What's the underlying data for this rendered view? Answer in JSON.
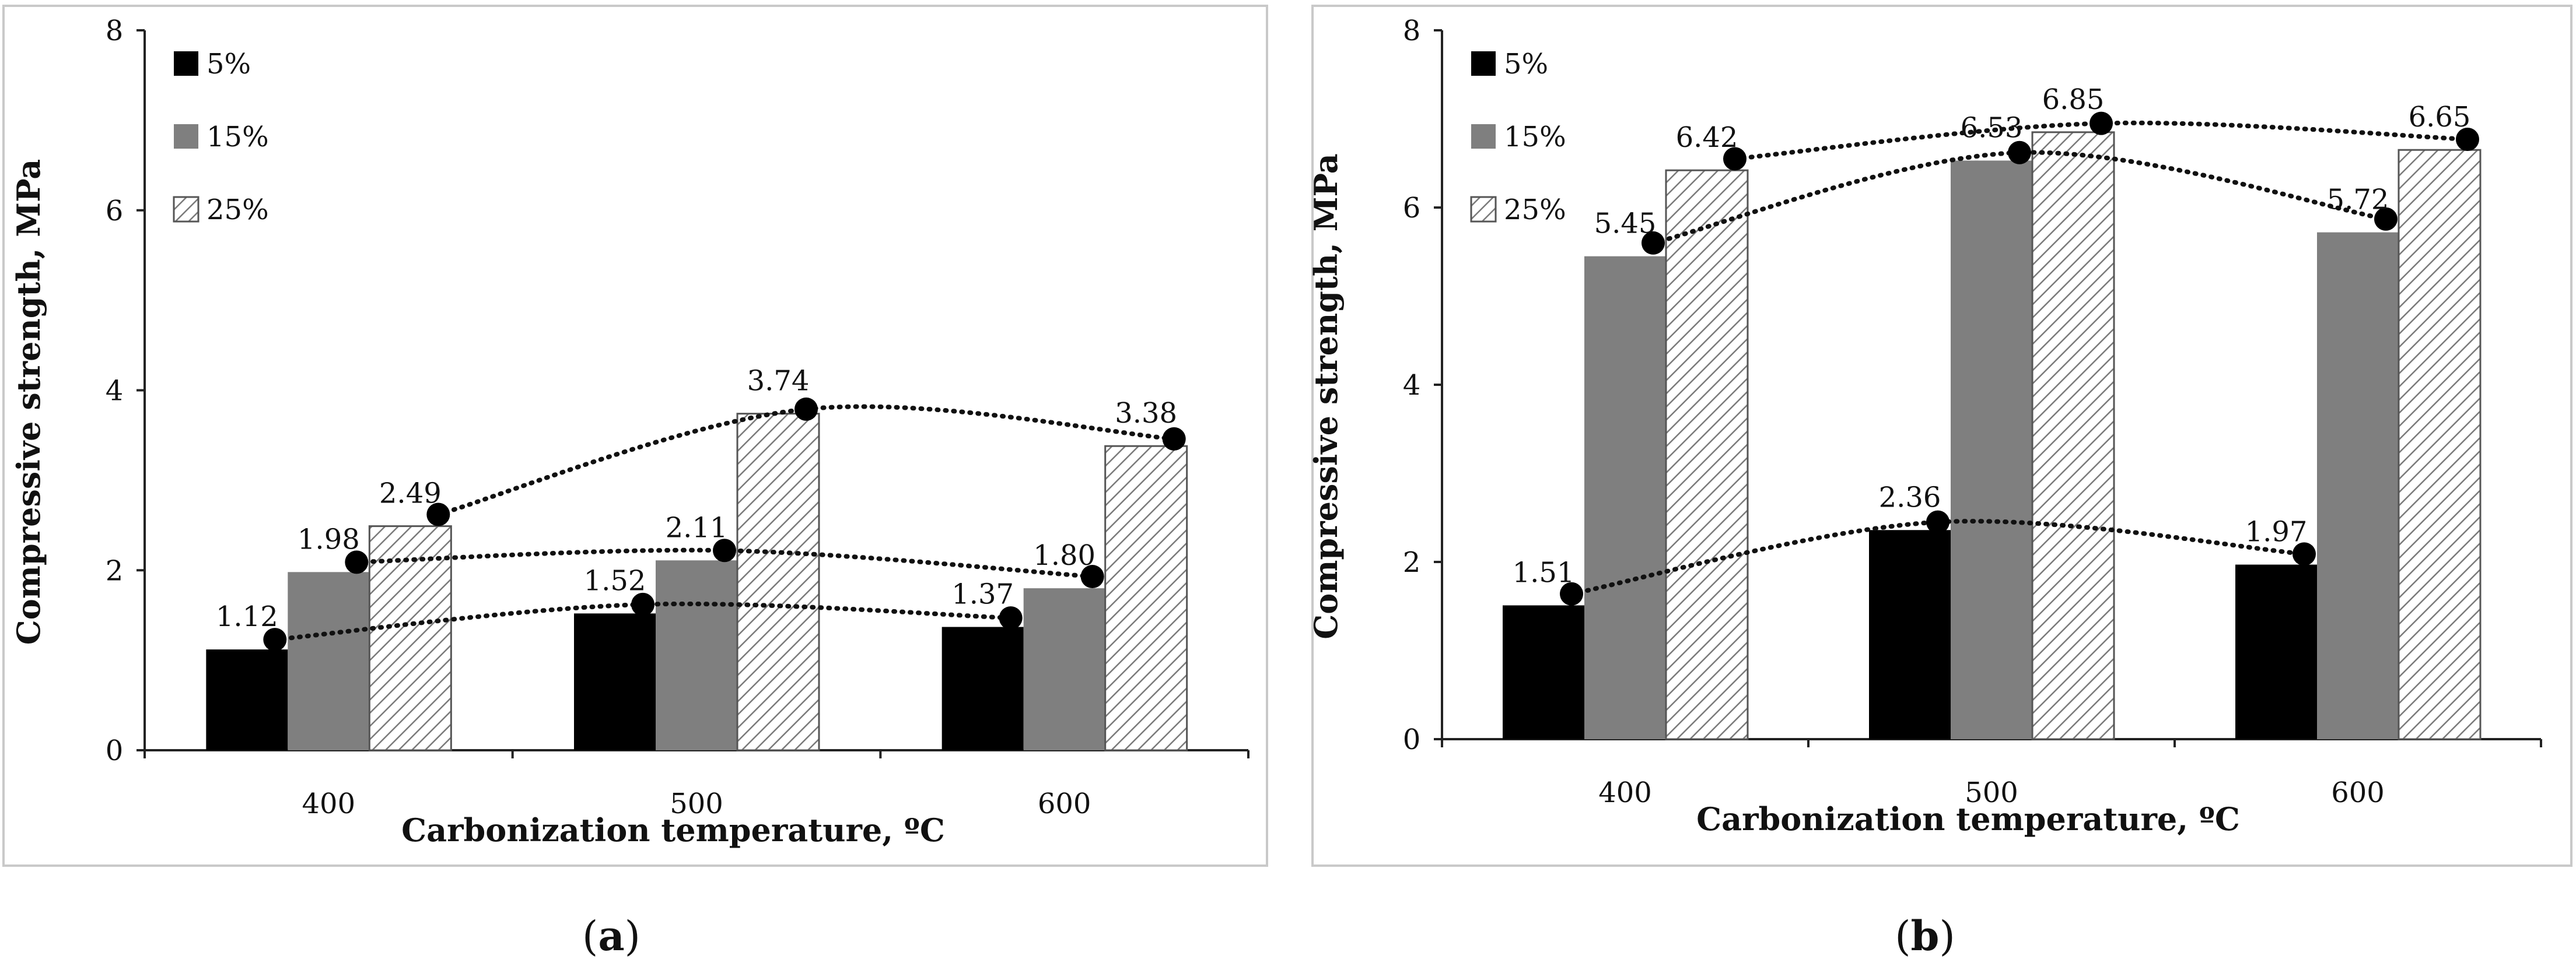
{
  "colors": {
    "series_5": "#000000",
    "series_15": "#7f7f7f",
    "series_25_bg": "#ffffff",
    "series_25_hatch": "#7a7a7a",
    "axis": "#222222",
    "frame": "#c9c9c9"
  },
  "chart_data": [
    {
      "type": "bar",
      "panel": "a",
      "caption": {
        "open": "(",
        "letter": "a",
        "close": ")"
      },
      "title": "",
      "xlabel": "Carbonization temperature, ºC",
      "ylabel": "Compressive strength, MPa",
      "categories": [
        "400",
        "500",
        "600"
      ],
      "ylim": [
        0,
        8
      ],
      "yticks": [
        "0",
        "2",
        "4",
        "6",
        "8"
      ],
      "legend": {
        "position": "top-left",
        "entries": [
          "5%",
          "15%",
          "25%"
        ]
      },
      "series": [
        {
          "name": "5%",
          "values": [
            1.12,
            1.52,
            1.37
          ],
          "labels": [
            "1.12",
            "1.52",
            "1.37"
          ],
          "trend_points": [
            1.23,
            1.62,
            1.47
          ]
        },
        {
          "name": "15%",
          "values": [
            1.98,
            2.11,
            1.8
          ],
          "labels": [
            "1.98",
            "2.11",
            "1.80"
          ],
          "trend_points": [
            2.09,
            2.22,
            1.93
          ]
        },
        {
          "name": "25%",
          "values": [
            2.49,
            3.74,
            3.38
          ],
          "labels": [
            "2.49",
            "3.74",
            "3.38"
          ],
          "trend_points": [
            2.62,
            3.79,
            3.46
          ]
        }
      ],
      "trendlines": "polynomial (dotted) through markers for each series"
    },
    {
      "type": "bar",
      "panel": "b",
      "caption": {
        "open": "(",
        "letter": "b",
        "close": ")"
      },
      "title": "",
      "xlabel": "Carbonization temperature, ºC",
      "ylabel": "Compressive strength, MPa",
      "categories": [
        "400",
        "500",
        "600"
      ],
      "ylim": [
        0,
        8
      ],
      "yticks": [
        "0",
        "2",
        "4",
        "6",
        "8"
      ],
      "legend": {
        "position": "top-left",
        "entries": [
          "5%",
          "15%",
          "25%"
        ]
      },
      "series": [
        {
          "name": "5%",
          "values": [
            1.51,
            2.36,
            1.97
          ],
          "labels": [
            "1.51",
            "2.36",
            "1.97"
          ],
          "trend_points": [
            1.64,
            2.45,
            2.09
          ]
        },
        {
          "name": "15%",
          "values": [
            5.45,
            6.53,
            5.72
          ],
          "labels": [
            "5.45",
            "6.53",
            "5.72"
          ],
          "trend_points": [
            5.6,
            6.62,
            5.87
          ]
        },
        {
          "name": "25%",
          "values": [
            6.42,
            6.85,
            6.65
          ],
          "labels": [
            "6.42",
            "6.85",
            "6.65"
          ],
          "trend_points": [
            6.55,
            6.95,
            6.77
          ]
        }
      ],
      "trendlines": "polynomial (dotted) through markers for each series"
    }
  ]
}
